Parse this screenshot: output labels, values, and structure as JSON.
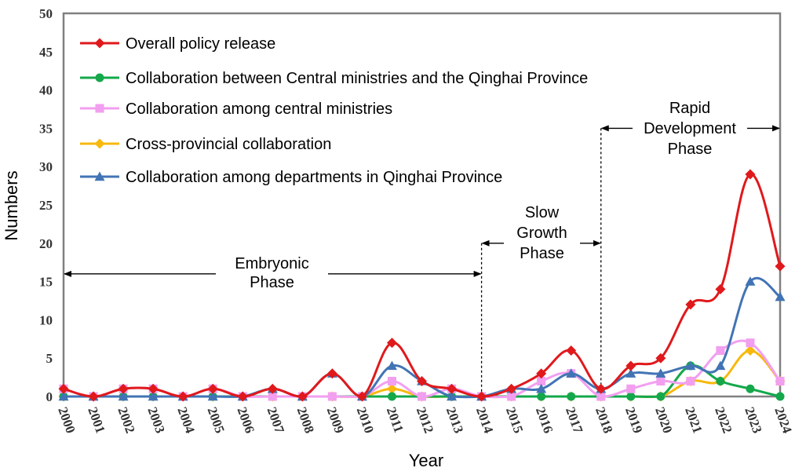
{
  "chart_data": {
    "type": "line",
    "xlabel": "Year",
    "ylabel": "Numbers",
    "ylim": [
      0,
      50
    ],
    "yticks": [
      0,
      5,
      10,
      15,
      20,
      25,
      30,
      35,
      40,
      45,
      50
    ],
    "x": [
      "2000",
      "2001",
      "2002",
      "2003",
      "2004",
      "2005",
      "2006",
      "2007",
      "2008",
      "2009",
      "2010",
      "2011",
      "2012",
      "2013",
      "2014",
      "2015",
      "2016",
      "2017",
      "2018",
      "2019",
      "2020",
      "2021",
      "2022",
      "2023",
      "2024"
    ],
    "grid": false,
    "legend_position": "top-left",
    "series": [
      {
        "name": "Overall policy release",
        "color": "#e0191c",
        "marker": "diamond",
        "values": [
          1,
          0,
          1,
          1,
          0,
          1,
          0,
          1,
          0,
          3,
          0,
          7,
          2,
          1,
          0,
          1,
          3,
          6,
          1,
          4,
          5,
          12,
          14,
          29,
          17
        ]
      },
      {
        "name": "Collaboration between Central ministries and the Qinghai Province",
        "color": "#14a84b",
        "marker": "circle",
        "values": [
          0,
          0,
          0,
          0,
          0,
          0,
          0,
          0,
          0,
          0,
          0,
          0,
          0,
          0,
          0,
          0,
          0,
          0,
          0,
          0,
          0,
          4,
          2,
          1,
          0
        ]
      },
      {
        "name": "Collaboration among central ministries",
        "color": "#f29ff0",
        "marker": "square",
        "values": [
          1,
          0,
          1,
          1,
          0,
          1,
          0,
          0,
          0,
          0,
          0,
          2,
          0,
          1,
          0,
          0,
          2,
          3,
          0,
          1,
          2,
          2,
          6,
          7,
          2
        ]
      },
      {
        "name": "Cross-provincial collaboration",
        "color": "#f7b90f",
        "marker": "diamond",
        "values": [
          0,
          0,
          0,
          0,
          0,
          0,
          0,
          0,
          0,
          0,
          0,
          1,
          0,
          0,
          0,
          0,
          0,
          0,
          0,
          0,
          0,
          2,
          2,
          6,
          2
        ]
      },
      {
        "name": "Collaboration among departments in Qinghai Province",
        "color": "#4274b5",
        "marker": "triangle",
        "values": [
          0,
          0,
          0,
          0,
          0,
          0,
          0,
          1,
          0,
          3,
          0,
          4,
          2,
          0,
          0,
          1,
          1,
          3,
          1,
          3,
          3,
          4,
          4,
          15,
          13
        ]
      }
    ],
    "phases": [
      {
        "label_lines": [
          "Embryonic",
          "Phase"
        ],
        "start": "2000",
        "end": "2014",
        "arrow_value": 16
      },
      {
        "label_lines": [
          "Slow",
          "Growth",
          "Phase"
        ],
        "start": "2014",
        "end": "2018",
        "arrow_value": 20
      },
      {
        "label_lines": [
          "Rapid",
          "Development",
          "Phase"
        ],
        "start": "2018",
        "end": "2024",
        "arrow_value": 35
      }
    ],
    "divider_years": [
      "2014",
      "2018"
    ]
  }
}
